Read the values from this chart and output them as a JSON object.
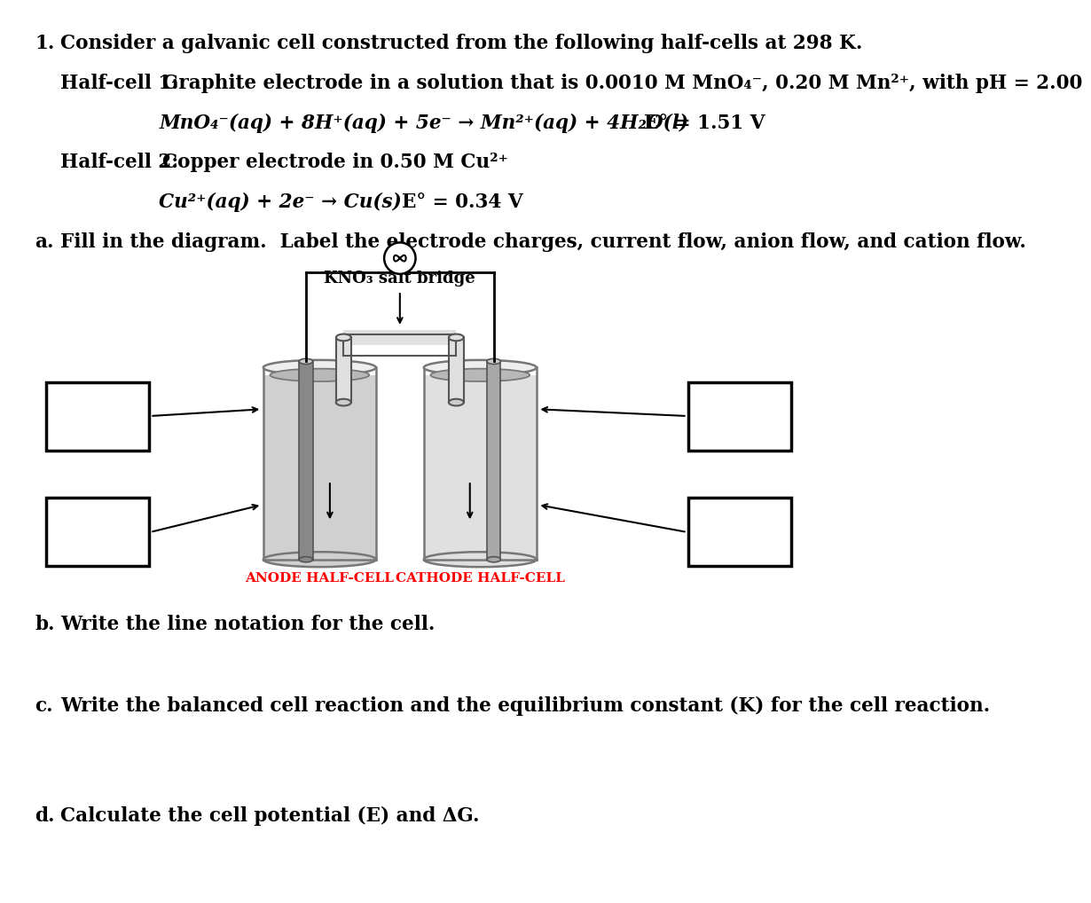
{
  "title_num": "1.",
  "title_text": "Consider a galvanic cell constructed from the following half-cells at 298 K.",
  "halfcell1_label": "Half-cell 1:",
  "halfcell1_desc": "Graphite electrode in a solution that is 0.0010 M MnO₄⁻, 0.20 M Mn²⁺, with pH = 2.00",
  "halfcell1_rxn": "MnO₄⁻(aq) + 8H⁺(aq) + 5e⁻ → Mn²⁺(aq) + 4H₂O(l)",
  "halfcell1_E": "E° = 1.51 V",
  "halfcell2_label": "Half-cell 2:",
  "halfcell2_desc": "Copper electrode in 0.50 M Cu²⁺",
  "halfcell2_rxn": "Cu²⁺(aq) + 2e⁻ → Cu(s)",
  "halfcell2_E": "E° = 0.34 V",
  "part_a_num": "a.",
  "part_a_text": "Fill in the diagram.  Label the electrode charges, current flow, anion flow, and cation flow.",
  "part_b_num": "b.",
  "part_b_text": "Write the line notation for the cell.",
  "part_c_num": "c.",
  "part_c_text": "Write the balanced cell reaction and the equilibrium constant (Κ) for the cell reaction.",
  "part_d_num": "d.",
  "part_d_text": "Calculate the cell potential (E) and ΔG.",
  "salt_bridge_label": "KNO₃ salt bridge",
  "anode_label": "ANODE HALF-CELL",
  "cathode_label": "CATHODE HALF-CELL",
  "bg_color": "#ffffff",
  "text_color": "#000000",
  "red_color": "#ff0000",
  "wire_color": "#000000",
  "box_color": "#000000",
  "beaker_wall_color": "#777777",
  "electrode_color_anode": "#888888",
  "electrode_color_cathode": "#a8a8a8",
  "solution_color_anode": "#d0d0d0",
  "solution_color_cathode": "#e0e0e0",
  "saltbridge_color": "#e8e8e8"
}
